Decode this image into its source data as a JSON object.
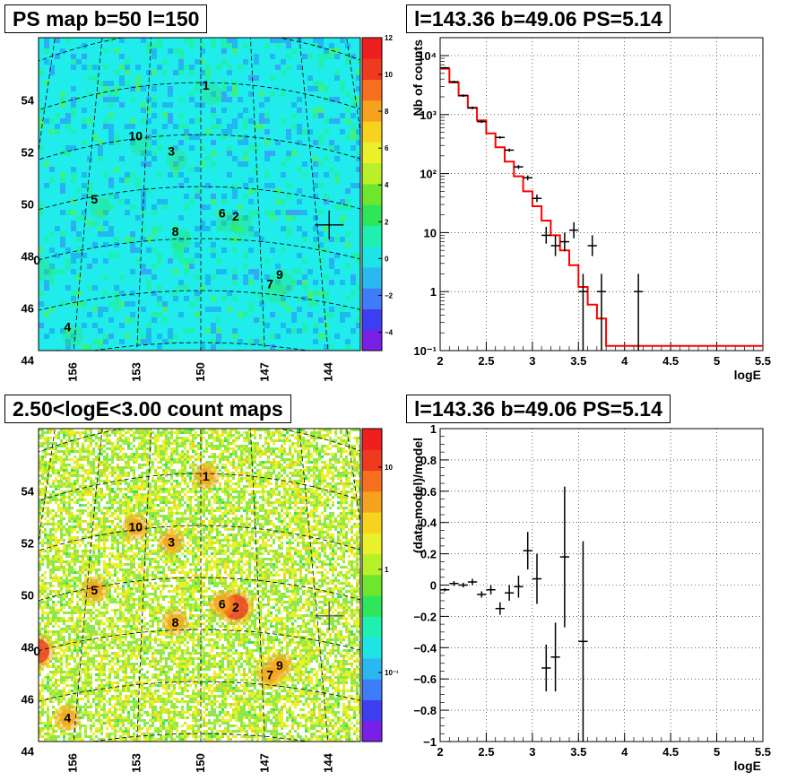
{
  "panels": {
    "ps_map_title": "PS map b=50 l=150",
    "count_map_title": "2.50<logE<3.00 count maps",
    "spectrum_title": "l=143.36 b=49.06 PS=5.14",
    "residual_title": "l=143.36 b=49.06 PS=5.14"
  },
  "chart_data": [
    {
      "type": "heatmap",
      "title": "PS map b=50 l=150",
      "x_ticks": [
        "156",
        "153",
        "150",
        "147",
        "144"
      ],
      "y_ticks": [
        "54",
        "52",
        "50",
        "48",
        "46",
        "44"
      ],
      "colorbar": {
        "ticks": [
          "12",
          "10",
          "8",
          "6",
          "4",
          "2",
          "0",
          "−2",
          "−4"
        ],
        "range": [
          -5,
          12
        ],
        "colors": [
          "#7a1fe6",
          "#3d3df2",
          "#3f7cf7",
          "#2bb7f0",
          "#1fe4e6",
          "#1ff0b0",
          "#2ee65a",
          "#6fe62e",
          "#b8f02a",
          "#eaf02a",
          "#f7d21f",
          "#f7a21f",
          "#f7701f",
          "#f03a1f",
          "#f01f1f"
        ]
      },
      "background_color": "#20ecec",
      "sources": [
        {
          "label": "0",
          "l": 158.3,
          "b": 48.0
        },
        {
          "label": "1",
          "l": 149.7,
          "b": 53.9
        },
        {
          "label": "2",
          "l": 148.2,
          "b": 48.9
        },
        {
          "label": "3",
          "l": 151.6,
          "b": 51.4
        },
        {
          "label": "4",
          "l": 156.4,
          "b": 45.1
        },
        {
          "label": "5",
          "l": 155.6,
          "b": 49.9
        },
        {
          "label": "6",
          "l": 148.9,
          "b": 49.0
        },
        {
          "label": "7",
          "l": 146.6,
          "b": 46.4
        },
        {
          "label": "8",
          "l": 151.3,
          "b": 48.3
        },
        {
          "label": "9",
          "l": 146.1,
          "b": 46.8
        },
        {
          "label": "10",
          "l": 153.6,
          "b": 52.1
        }
      ],
      "marker": {
        "l": 143.36,
        "b": 49.06
      }
    },
    {
      "type": "line",
      "title": "l=143.36 b=49.06 PS=5.14",
      "xlabel": "logE",
      "ylabel": "Nb of counts",
      "x_ticks": [
        "2",
        "2.5",
        "3",
        "3.5",
        "4",
        "4.5",
        "5",
        "5.5"
      ],
      "y_ticks": [
        "10⁻¹",
        "1",
        "10",
        "10²",
        "10³",
        "10⁴"
      ],
      "xlim": [
        2,
        5.5
      ],
      "ylim": [
        0.1,
        10000
      ],
      "yscale": "log",
      "grid": true,
      "model_step": {
        "name": "model",
        "color": "#ff0000",
        "edges": [
          2.0,
          2.1,
          2.2,
          2.3,
          2.4,
          2.5,
          2.6,
          2.7,
          2.8,
          2.9,
          3.0,
          3.1,
          3.2,
          3.3,
          3.4,
          3.5,
          3.6,
          3.7,
          3.8,
          5.5
        ],
        "values": [
          6000,
          3500,
          2100,
          1300,
          800,
          480,
          280,
          160,
          90,
          50,
          28,
          16,
          9,
          5,
          2.8,
          1.2,
          0.6,
          0.35,
          0.12
        ]
      },
      "data_points": [
        {
          "x": 2.05,
          "y": 6200,
          "yerr_lo": 6000,
          "yerr_hi": 6400
        },
        {
          "x": 2.15,
          "y": 3600,
          "yerr_lo": 3450,
          "yerr_hi": 3750
        },
        {
          "x": 2.25,
          "y": 2100,
          "yerr_lo": 2000,
          "yerr_hi": 2200
        },
        {
          "x": 2.35,
          "y": 1300,
          "yerr_lo": 1230,
          "yerr_hi": 1370
        },
        {
          "x": 2.45,
          "y": 760,
          "yerr_lo": 720,
          "yerr_hi": 800
        },
        {
          "x": 2.65,
          "y": 410,
          "yerr_lo": 390,
          "yerr_hi": 430
        },
        {
          "x": 2.75,
          "y": 250,
          "yerr_lo": 235,
          "yerr_hi": 265
        },
        {
          "x": 2.85,
          "y": 130,
          "yerr_lo": 120,
          "yerr_hi": 140
        },
        {
          "x": 2.95,
          "y": 85,
          "yerr_lo": 77,
          "yerr_hi": 93
        },
        {
          "x": 3.05,
          "y": 38,
          "yerr_lo": 33,
          "yerr_hi": 44
        },
        {
          "x": 3.15,
          "y": 9,
          "yerr_lo": 6.5,
          "yerr_hi": 12.5
        },
        {
          "x": 3.25,
          "y": 6,
          "yerr_lo": 4,
          "yerr_hi": 9
        },
        {
          "x": 3.35,
          "y": 7,
          "yerr_lo": 4.8,
          "yerr_hi": 10
        },
        {
          "x": 3.45,
          "y": 11,
          "yerr_lo": 8,
          "yerr_hi": 15
        },
        {
          "x": 3.55,
          "y": 1,
          "yerr_lo": 0.1,
          "yerr_hi": 2
        },
        {
          "x": 3.65,
          "y": 6,
          "yerr_lo": 4,
          "yerr_hi": 9
        },
        {
          "x": 3.75,
          "y": 1,
          "yerr_lo": 0.1,
          "yerr_hi": 2
        },
        {
          "x": 4.15,
          "y": 1,
          "yerr_lo": 0.1,
          "yerr_hi": 2
        }
      ]
    },
    {
      "type": "heatmap",
      "title": "2.50<logE<3.00 count maps",
      "x_ticks": [
        "156",
        "153",
        "150",
        "147",
        "144"
      ],
      "y_ticks": [
        "54",
        "52",
        "50",
        "48",
        "46",
        "44"
      ],
      "colorbar": {
        "ticks": [
          "10",
          "1",
          "10⁻¹"
        ],
        "scale": "log",
        "colors": [
          "#7a1fe6",
          "#3d3df2",
          "#3f7cf7",
          "#2bb7f0",
          "#1fe4e6",
          "#1ff0b0",
          "#2ee65a",
          "#6fe62e",
          "#b8f02a",
          "#eaf02a",
          "#f7d21f",
          "#f7a21f",
          "#f7701f",
          "#f03a1f",
          "#f01f1f"
        ]
      },
      "sources": [
        {
          "label": "0",
          "l": 158.3,
          "b": 48.0
        },
        {
          "label": "1",
          "l": 149.7,
          "b": 53.9
        },
        {
          "label": "2",
          "l": 148.2,
          "b": 48.9
        },
        {
          "label": "3",
          "l": 151.6,
          "b": 51.4
        },
        {
          "label": "4",
          "l": 156.4,
          "b": 45.1
        },
        {
          "label": "5",
          "l": 155.6,
          "b": 49.9
        },
        {
          "label": "6",
          "l": 148.9,
          "b": 49.0
        },
        {
          "label": "7",
          "l": 146.6,
          "b": 46.4
        },
        {
          "label": "8",
          "l": 151.3,
          "b": 48.3
        },
        {
          "label": "9",
          "l": 146.1,
          "b": 46.8
        },
        {
          "label": "10",
          "l": 153.6,
          "b": 52.1
        }
      ],
      "marker": {
        "l": 143.36,
        "b": 49.06
      }
    },
    {
      "type": "scatter",
      "title": "l=143.36 b=49.06 PS=5.14",
      "xlabel": "logE",
      "ylabel": "(data-model)/model",
      "x_ticks": [
        "2",
        "2.5",
        "3",
        "3.5",
        "4",
        "4.5",
        "5",
        "5.5"
      ],
      "y_ticks": [
        "1",
        "0.8",
        "0.6",
        "0.4",
        "0.2",
        "0",
        "−0.2",
        "−0.4",
        "−0.6",
        "−0.8",
        "−1"
      ],
      "xlim": [
        2,
        5.5
      ],
      "ylim": [
        -1,
        1
      ],
      "grid": true,
      "data_points": [
        {
          "x": 2.05,
          "y": -0.03,
          "err": 0.01
        },
        {
          "x": 2.15,
          "y": 0.01,
          "err": 0.015
        },
        {
          "x": 2.25,
          "y": 0.0,
          "err": 0.015
        },
        {
          "x": 2.35,
          "y": 0.02,
          "err": 0.02
        },
        {
          "x": 2.45,
          "y": -0.06,
          "err": 0.02
        },
        {
          "x": 2.55,
          "y": -0.03,
          "err": 0.03
        },
        {
          "x": 2.65,
          "y": -0.15,
          "err": 0.04
        },
        {
          "x": 2.75,
          "y": -0.05,
          "err": 0.05
        },
        {
          "x": 2.85,
          "y": -0.01,
          "err": 0.07
        },
        {
          "x": 2.95,
          "y": 0.22,
          "err": 0.12
        },
        {
          "x": 3.05,
          "y": 0.04,
          "err": 0.16
        },
        {
          "x": 3.15,
          "y": -0.53,
          "err": 0.15
        },
        {
          "x": 3.25,
          "y": -0.46,
          "err": 0.22
        },
        {
          "x": 3.35,
          "y": 0.18,
          "err": 0.45
        },
        {
          "x": 3.55,
          "y": -0.36,
          "err": 0.64
        }
      ]
    }
  ]
}
